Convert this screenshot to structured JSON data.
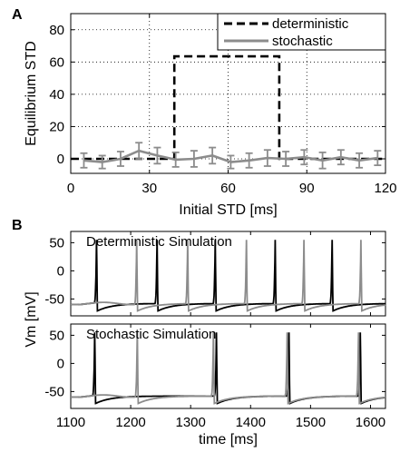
{
  "panels": {
    "a": {
      "letter": "A"
    },
    "b": {
      "letter": "B"
    }
  },
  "chart_data": [
    {
      "type": "line",
      "xlabel": "Initial STD [ms]",
      "ylabel": "Equilibrium STD",
      "xlim": [
        0,
        120
      ],
      "ylim": [
        -9,
        90
      ],
      "xticks": [
        0,
        30,
        60,
        90,
        120
      ],
      "yticks": [
        0,
        20,
        40,
        60,
        80
      ],
      "grid": true,
      "legend": "top-right",
      "series": [
        {
          "name": "deterministic",
          "style": "dashed",
          "color": "#000000",
          "x": [
            0,
            39.5,
            39.5,
            79.5,
            79.5,
            120
          ],
          "y": [
            0,
            0,
            63.5,
            63.5,
            0,
            0
          ]
        },
        {
          "name": "stochastic",
          "style": "solid",
          "color": "#8c8c8c",
          "x": [
            5,
            12,
            19,
            26,
            33,
            40,
            47,
            54,
            61,
            68,
            75,
            82,
            89,
            96,
            103,
            110,
            117
          ],
          "y": [
            -1,
            -2,
            0,
            5,
            2,
            -0.5,
            0,
            2,
            -2,
            -1,
            0.5,
            0,
            1,
            -1,
            1,
            -1,
            0.5
          ],
          "err": [
            4.5,
            4,
            4.5,
            5,
            5,
            4.5,
            5,
            5,
            4,
            4.5,
            5,
            4.5,
            4.5,
            5,
            4.5,
            4.5,
            4.5
          ]
        }
      ]
    },
    {
      "type": "line",
      "label": "Deterministic Simulation",
      "xlim": [
        1100,
        1625
      ],
      "ylim": [
        -80,
        70
      ],
      "yticks": [
        -50,
        0,
        50
      ],
      "grid": false,
      "series": [
        {
          "color": "#000000",
          "spikes": [
            1143,
            1244,
            1341,
            1441,
            1536,
            1633
          ]
        },
        {
          "color": "#8c8c8c",
          "spikes": [
            1210,
            1295,
            1393,
            1489,
            1584
          ]
        }
      ]
    },
    {
      "type": "line",
      "label": "Stochastic Simulation",
      "xlabel": "time [ms]",
      "ylabel": "Vm [mV]",
      "xlim": [
        1100,
        1625
      ],
      "ylim": [
        -80,
        70
      ],
      "xticks": [
        1100,
        1200,
        1300,
        1400,
        1500,
        1600
      ],
      "yticks": [
        -50,
        0,
        50
      ],
      "grid": false,
      "series": [
        {
          "color": "#000000",
          "spikes": [
            1140,
            1343,
            1464,
            1583
          ]
        },
        {
          "color": "#8c8c8c",
          "spikes": [
            1211,
            1338,
            1461,
            1580
          ]
        }
      ]
    }
  ]
}
